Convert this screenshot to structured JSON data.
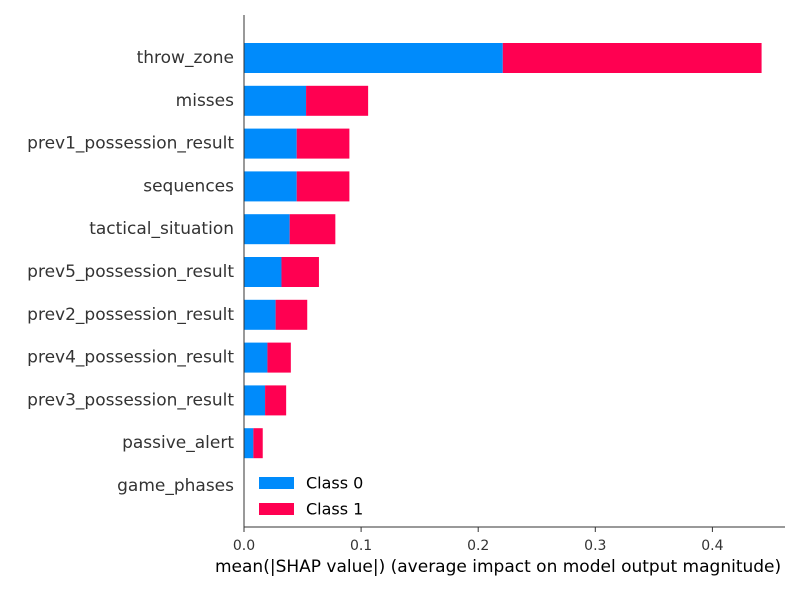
{
  "chart_data": {
    "type": "bar",
    "stacked": true,
    "orientation": "horizontal",
    "categories": [
      "throw_zone",
      "misses",
      "prev1_possession_result",
      "sequences",
      "tactical_situation",
      "prev5_possession_result",
      "prev2_possession_result",
      "prev4_possession_result",
      "prev3_possession_result",
      "passive_alert",
      "game_phases"
    ],
    "series": [
      {
        "name": "Class 0",
        "color": "#008bfb",
        "values": [
          0.221,
          0.053,
          0.045,
          0.045,
          0.039,
          0.032,
          0.027,
          0.02,
          0.018,
          0.008,
          0.0
        ]
      },
      {
        "name": "Class 1",
        "color": "#ff0051",
        "values": [
          0.221,
          0.053,
          0.045,
          0.045,
          0.039,
          0.032,
          0.027,
          0.02,
          0.018,
          0.008,
          0.0
        ]
      }
    ],
    "xlabel": "mean(|SHAP value|) (average impact on model output magnitude)",
    "ylabel": "",
    "xlim": [
      0.0,
      0.46
    ],
    "xticks": [
      "0.0",
      "0.1",
      "0.2",
      "0.3",
      "0.4"
    ],
    "grid": false,
    "legend": "lower-center"
  }
}
